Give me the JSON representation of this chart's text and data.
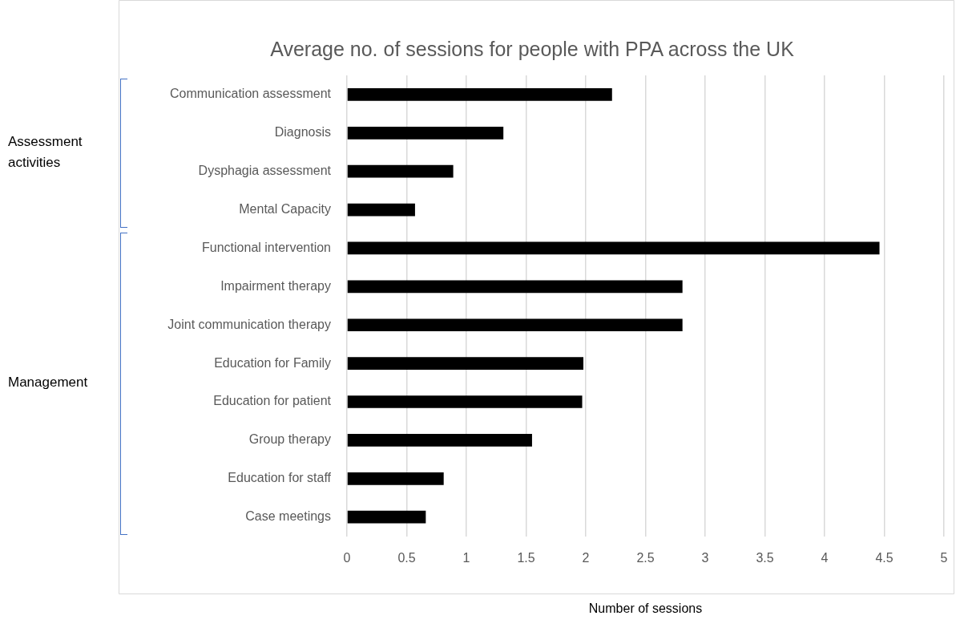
{
  "chart_data": {
    "type": "bar",
    "orientation": "horizontal",
    "title": "Average no. of sessions for people with PPA across the UK",
    "xlabel": "Number of sessions",
    "categories": [
      "Communication assessment",
      "Diagnosis",
      "Dysphagia assessment",
      "Mental Capacity",
      "Functional intervention",
      "Impairment therapy",
      "Joint communication therapy",
      "Education for Family",
      "Education for patient",
      "Group therapy",
      "Education for staff",
      "Case meetings"
    ],
    "values": [
      2.22,
      1.31,
      0.89,
      0.57,
      4.46,
      2.81,
      2.81,
      1.98,
      1.97,
      1.55,
      0.81,
      0.66
    ],
    "color": "#000000",
    "xlim": [
      0,
      5
    ],
    "xticks": [
      0,
      0.5,
      1,
      1.5,
      2,
      2.5,
      3,
      3.5,
      4,
      4.5,
      5
    ],
    "grid": "x",
    "legend": false,
    "annotations": [
      "Assessment activities",
      "Management"
    ]
  }
}
